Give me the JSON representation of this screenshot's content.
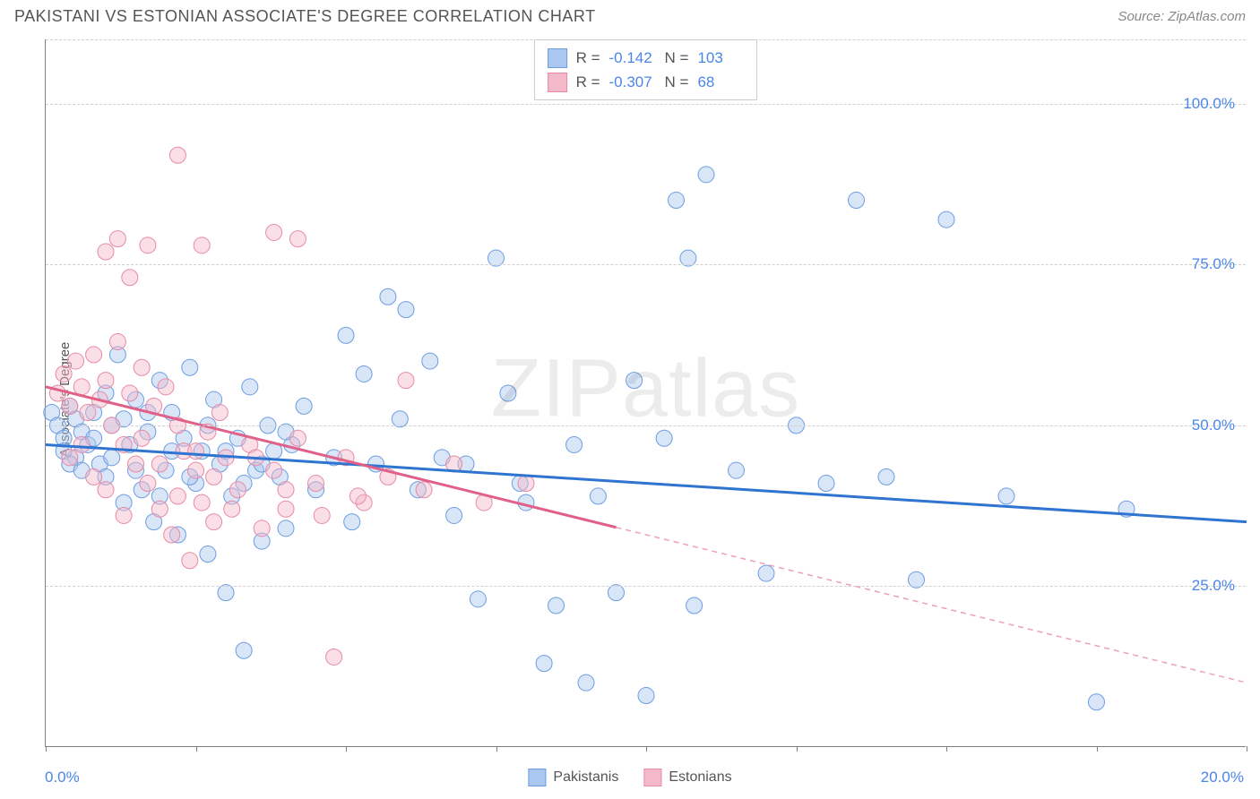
{
  "header": {
    "title": "PAKISTANI VS ESTONIAN ASSOCIATE'S DEGREE CORRELATION CHART",
    "source": "Source: ZipAtlas.com"
  },
  "watermark": {
    "part1": "ZIP",
    "part2": "atlas"
  },
  "chart": {
    "type": "scatter",
    "ylabel": "Associate's Degree",
    "xlim": [
      0,
      20
    ],
    "ylim": [
      0,
      110
    ],
    "ytick_values": [
      25,
      50,
      75,
      100
    ],
    "ytick_labels": [
      "25.0%",
      "50.0%",
      "75.0%",
      "100.0%"
    ],
    "xtick_values": [
      0,
      2.5,
      5,
      7.5,
      10,
      12.5,
      15,
      17.5,
      20
    ],
    "xaxis_labels": {
      "min": "0.0%",
      "max": "20.0%"
    },
    "grid_color": "#d0d0d0",
    "background_color": "#ffffff",
    "marker_radius": 9,
    "marker_opacity": 0.45,
    "line_width": 3,
    "series": [
      {
        "name": "Pakistanis",
        "color_fill": "#a9c7f0",
        "color_stroke": "#6d9de0",
        "line_color": "#2f74d0",
        "regression": {
          "x1": 0,
          "y1": 47,
          "x2": 20,
          "y2": 35,
          "dash_from_x": 20
        },
        "stats": {
          "R": "-0.142",
          "N": "103"
        },
        "points": [
          [
            0.1,
            52
          ],
          [
            0.2,
            50
          ],
          [
            0.3,
            48
          ],
          [
            0.4,
            53
          ],
          [
            0.5,
            45
          ],
          [
            0.5,
            51
          ],
          [
            0.6,
            49
          ],
          [
            0.7,
            47
          ],
          [
            0.8,
            52
          ],
          [
            0.9,
            44
          ],
          [
            1.0,
            55
          ],
          [
            1.0,
            42
          ],
          [
            1.1,
            50
          ],
          [
            1.2,
            61
          ],
          [
            1.3,
            38
          ],
          [
            1.4,
            47
          ],
          [
            1.5,
            54
          ],
          [
            1.6,
            40
          ],
          [
            1.7,
            49
          ],
          [
            1.8,
            35
          ],
          [
            1.9,
            57
          ],
          [
            2.0,
            43
          ],
          [
            2.1,
            52
          ],
          [
            2.2,
            33
          ],
          [
            2.3,
            48
          ],
          [
            2.4,
            59
          ],
          [
            2.5,
            41
          ],
          [
            2.6,
            46
          ],
          [
            2.7,
            30
          ],
          [
            2.8,
            54
          ],
          [
            2.9,
            44
          ],
          [
            3.0,
            24
          ],
          [
            3.1,
            39
          ],
          [
            3.2,
            48
          ],
          [
            3.3,
            15
          ],
          [
            3.4,
            56
          ],
          [
            3.5,
            43
          ],
          [
            3.6,
            32
          ],
          [
            3.7,
            50
          ],
          [
            3.8,
            46
          ],
          [
            3.9,
            42
          ],
          [
            4.0,
            34
          ],
          [
            4.1,
            47
          ],
          [
            4.3,
            53
          ],
          [
            4.5,
            40
          ],
          [
            4.8,
            45
          ],
          [
            5.0,
            64
          ],
          [
            5.1,
            35
          ],
          [
            5.3,
            58
          ],
          [
            5.5,
            44
          ],
          [
            5.7,
            70
          ],
          [
            5.9,
            51
          ],
          [
            6.0,
            68
          ],
          [
            6.2,
            40
          ],
          [
            6.4,
            60
          ],
          [
            6.6,
            45
          ],
          [
            6.8,
            36
          ],
          [
            7.0,
            44
          ],
          [
            7.2,
            23
          ],
          [
            7.5,
            76
          ],
          [
            7.7,
            55
          ],
          [
            7.9,
            41
          ],
          [
            8.0,
            38
          ],
          [
            8.3,
            13
          ],
          [
            8.5,
            22
          ],
          [
            8.8,
            47
          ],
          [
            9.0,
            10
          ],
          [
            9.2,
            39
          ],
          [
            9.5,
            24
          ],
          [
            9.8,
            57
          ],
          [
            10.0,
            8
          ],
          [
            10.3,
            48
          ],
          [
            10.5,
            85
          ],
          [
            10.7,
            76
          ],
          [
            10.8,
            22
          ],
          [
            11.0,
            89
          ],
          [
            11.5,
            43
          ],
          [
            12.0,
            27
          ],
          [
            12.5,
            50
          ],
          [
            13.0,
            41
          ],
          [
            13.5,
            85
          ],
          [
            14.0,
            42
          ],
          [
            14.5,
            26
          ],
          [
            15.0,
            82
          ],
          [
            16.0,
            39
          ],
          [
            17.5,
            7
          ],
          [
            18.0,
            37
          ],
          [
            0.3,
            46
          ],
          [
            0.4,
            44
          ],
          [
            0.6,
            43
          ],
          [
            0.8,
            48
          ],
          [
            1.1,
            45
          ],
          [
            1.3,
            51
          ],
          [
            1.5,
            43
          ],
          [
            1.7,
            52
          ],
          [
            1.9,
            39
          ],
          [
            2.1,
            46
          ],
          [
            2.4,
            42
          ],
          [
            2.7,
            50
          ],
          [
            3.0,
            46
          ],
          [
            3.3,
            41
          ],
          [
            3.6,
            44
          ],
          [
            4.0,
            49
          ]
        ]
      },
      {
        "name": "Estonians",
        "color_fill": "#f4b9c9",
        "color_stroke": "#e78aa5",
        "line_color": "#e06088",
        "regression": {
          "x1": 0,
          "y1": 56,
          "x2": 20,
          "y2": 10,
          "dash_from_x": 9.5
        },
        "stats": {
          "R": "-0.307",
          "N": "68"
        },
        "points": [
          [
            0.2,
            55
          ],
          [
            0.3,
            58
          ],
          [
            0.4,
            53
          ],
          [
            0.5,
            60
          ],
          [
            0.6,
            56
          ],
          [
            0.7,
            52
          ],
          [
            0.8,
            61
          ],
          [
            0.9,
            54
          ],
          [
            1.0,
            57
          ],
          [
            1.1,
            50
          ],
          [
            1.2,
            63
          ],
          [
            1.3,
            47
          ],
          [
            1.4,
            55
          ],
          [
            1.5,
            44
          ],
          [
            1.6,
            59
          ],
          [
            1.7,
            41
          ],
          [
            1.8,
            53
          ],
          [
            1.9,
            37
          ],
          [
            2.0,
            56
          ],
          [
            2.1,
            33
          ],
          [
            2.2,
            50
          ],
          [
            2.3,
            46
          ],
          [
            2.4,
            29
          ],
          [
            2.5,
            43
          ],
          [
            2.6,
            38
          ],
          [
            2.7,
            49
          ],
          [
            2.8,
            35
          ],
          [
            2.9,
            52
          ],
          [
            3.0,
            45
          ],
          [
            3.2,
            40
          ],
          [
            3.4,
            47
          ],
          [
            3.6,
            34
          ],
          [
            3.8,
            43
          ],
          [
            4.0,
            37
          ],
          [
            4.2,
            48
          ],
          [
            4.5,
            41
          ],
          [
            4.8,
            14
          ],
          [
            5.0,
            45
          ],
          [
            5.3,
            38
          ],
          [
            5.7,
            42
          ],
          [
            6.0,
            57
          ],
          [
            6.3,
            40
          ],
          [
            6.8,
            44
          ],
          [
            7.3,
            38
          ],
          [
            8.0,
            41
          ],
          [
            1.0,
            77
          ],
          [
            1.2,
            79
          ],
          [
            1.4,
            73
          ],
          [
            1.7,
            78
          ],
          [
            2.2,
            92
          ],
          [
            2.6,
            78
          ],
          [
            3.8,
            80
          ],
          [
            4.2,
            79
          ],
          [
            0.4,
            45
          ],
          [
            0.6,
            47
          ],
          [
            0.8,
            42
          ],
          [
            1.0,
            40
          ],
          [
            1.3,
            36
          ],
          [
            1.6,
            48
          ],
          [
            1.9,
            44
          ],
          [
            2.2,
            39
          ],
          [
            2.5,
            46
          ],
          [
            2.8,
            42
          ],
          [
            3.1,
            37
          ],
          [
            3.5,
            45
          ],
          [
            4.0,
            40
          ],
          [
            4.6,
            36
          ],
          [
            5.2,
            39
          ]
        ]
      }
    ]
  },
  "top_legend": {
    "r_label": "R =",
    "n_label": "N ="
  },
  "bottom_legend": {
    "items": [
      "Pakistanis",
      "Estonians"
    ]
  }
}
